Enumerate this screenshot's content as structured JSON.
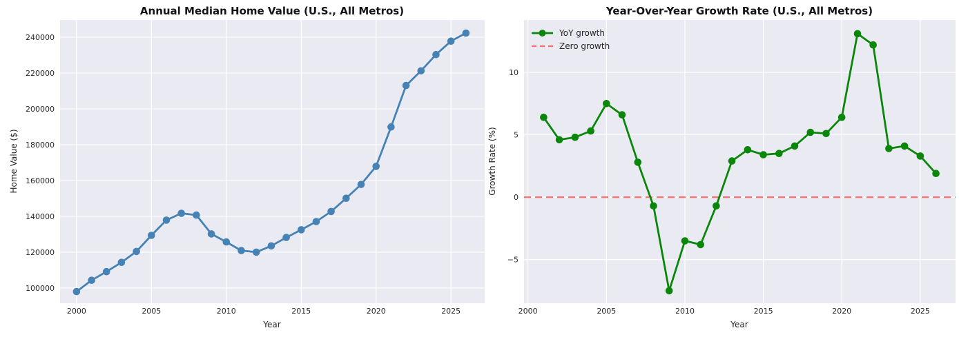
{
  "style": {
    "figure_bg": "#ffffff",
    "axes_bg": "#eaeaf2",
    "grid_color": "#ffffff",
    "text_color": "#262626",
    "title_color": "#141414",
    "home_value_line_color": "#4682b4",
    "growth_line_color": "#0a860a",
    "zero_line_color": "rgba(255,0,0,0.55)"
  },
  "chart_data": [
    {
      "type": "line",
      "title": "Annual Median Home Value (U.S., All Metros)",
      "xlabel": "Year",
      "ylabel": "Home Value ($)",
      "x": [
        2000,
        2001,
        2002,
        2003,
        2004,
        2005,
        2006,
        2007,
        2008,
        2009,
        2010,
        2011,
        2012,
        2013,
        2014,
        2015,
        2016,
        2017,
        2018,
        2019,
        2020,
        2021,
        2022,
        2023,
        2024,
        2025,
        2026
      ],
      "values": [
        98000,
        104300,
        109100,
        114300,
        120400,
        129400,
        137900,
        141700,
        140700,
        130200,
        125700,
        120900,
        120000,
        123500,
        128200,
        132500,
        137100,
        142700,
        150100,
        157800,
        167900,
        189900,
        213000,
        221200,
        230300,
        237800,
        242300
      ],
      "color_key": "home_value_line_color",
      "marker": "o",
      "grid": true,
      "xlim": [
        1998.9,
        2027.25
      ],
      "ylim": [
        91500,
        249600
      ],
      "xticks": [
        2000,
        2005,
        2010,
        2015,
        2020,
        2025
      ],
      "xtick_labels": [
        "2000",
        "2005",
        "2010",
        "2015",
        "2020",
        "2025"
      ],
      "yticks": [
        100000,
        120000,
        140000,
        160000,
        180000,
        200000,
        220000,
        240000
      ],
      "ytick_labels": [
        "100000",
        "120000",
        "140000",
        "160000",
        "180000",
        "200000",
        "220000",
        "240000"
      ]
    },
    {
      "type": "line",
      "title": "Year-Over-Year Growth Rate (U.S., All Metros)",
      "xlabel": "Year",
      "ylabel": "Growth Rate (%)",
      "series_name": "YoY growth",
      "x": [
        2001,
        2002,
        2003,
        2004,
        2005,
        2006,
        2007,
        2008,
        2009,
        2010,
        2011,
        2012,
        2013,
        2014,
        2015,
        2016,
        2017,
        2018,
        2019,
        2020,
        2021,
        2022,
        2023,
        2024,
        2025,
        2026
      ],
      "values": [
        6.4,
        4.6,
        4.8,
        5.3,
        7.5,
        6.6,
        2.8,
        -0.7,
        -7.5,
        -3.5,
        -3.8,
        -0.7,
        2.9,
        3.8,
        3.4,
        3.5,
        4.1,
        5.2,
        5.1,
        6.4,
        13.1,
        12.2,
        3.9,
        4.1,
        3.3,
        1.9
      ],
      "color_key": "growth_line_color",
      "marker": "o",
      "grid": true,
      "zero_line": {
        "label": "Zero growth",
        "y": 0
      },
      "legend": {
        "position": "upper left",
        "items": [
          "YoY growth",
          "Zero growth"
        ]
      },
      "xlim": [
        1999.75,
        2027.25
      ],
      "ylim": [
        -8.5,
        14.2
      ],
      "xticks": [
        2000,
        2005,
        2010,
        2015,
        2020,
        2025
      ],
      "xtick_labels": [
        "2000",
        "2005",
        "2010",
        "2015",
        "2020",
        "2025"
      ],
      "yticks": [
        -5,
        0,
        5,
        10
      ],
      "ytick_labels": [
        "−5",
        "0",
        "5",
        "10"
      ]
    }
  ]
}
